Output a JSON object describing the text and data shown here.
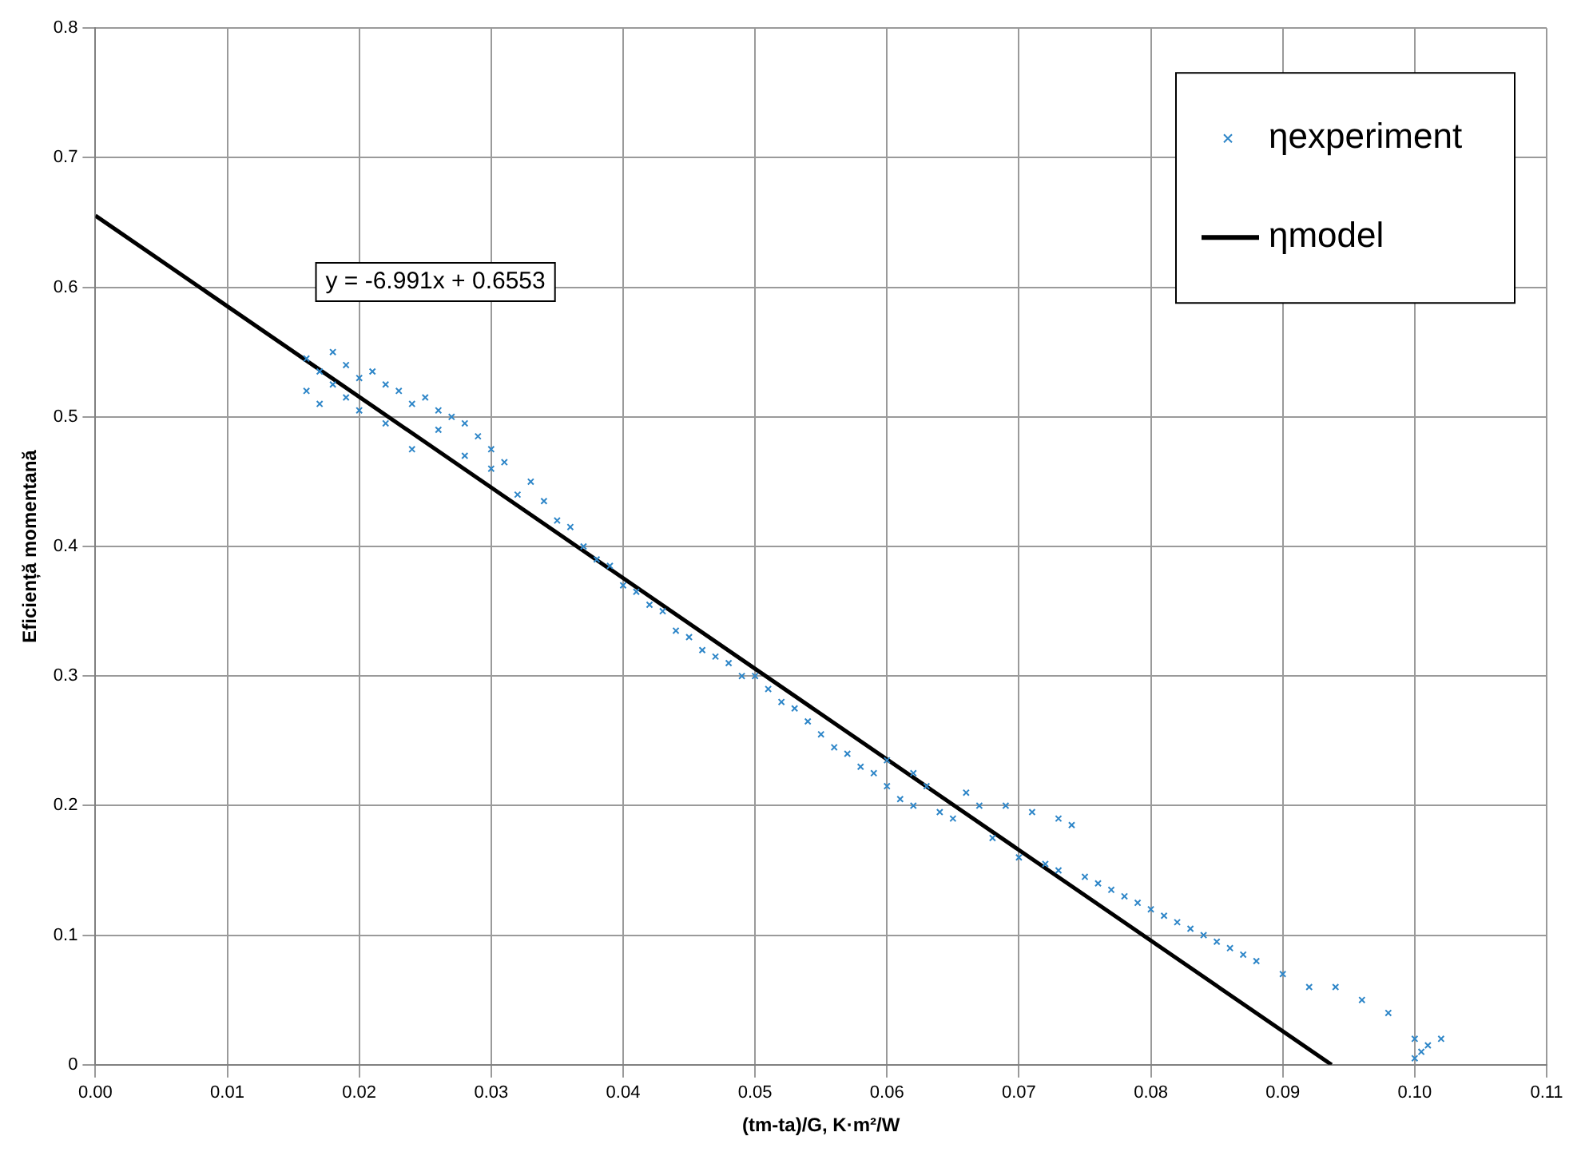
{
  "chart_data": {
    "type": "scatter",
    "xlabel": "(tm-ta)/G, K·m²/W",
    "ylabel": "Eficiență momentană",
    "annotations": [
      "y = -6.991x + 0.6553"
    ],
    "xlim": [
      0,
      0.11
    ],
    "xticks": [
      {
        "value": 0,
        "label": "0.00"
      },
      {
        "value": 0.01,
        "label": "0.01"
      },
      {
        "value": 0.02,
        "label": "0.02"
      },
      {
        "value": 0.03,
        "label": "0.03"
      },
      {
        "value": 0.04,
        "label": "0.04"
      },
      {
        "value": 0.05,
        "label": "0.05"
      },
      {
        "value": 0.06,
        "label": "0.06"
      },
      {
        "value": 0.07,
        "label": "0.07"
      },
      {
        "value": 0.08,
        "label": "0.08"
      },
      {
        "value": 0.09,
        "label": "0.09"
      },
      {
        "value": 0.1,
        "label": "0.10"
      },
      {
        "value": 0.11,
        "label": "0.11"
      }
    ],
    "ylim": [
      0,
      0.8
    ],
    "yticks": [
      0,
      0.1,
      0.2,
      0.3,
      0.4,
      0.5,
      0.6,
      0.7,
      0.8
    ],
    "grid": true,
    "legend": "top right",
    "series": [
      {
        "name": "ηexperiment",
        "marker": "cross",
        "color": "#2e86c8",
        "x": [
          0.016,
          0.016,
          0.017,
          0.017,
          0.018,
          0.018,
          0.019,
          0.019,
          0.02,
          0.02,
          0.021,
          0.022,
          0.022,
          0.023,
          0.024,
          0.024,
          0.025,
          0.026,
          0.026,
          0.027,
          0.028,
          0.028,
          0.029,
          0.03,
          0.03,
          0.031,
          0.032,
          0.033,
          0.034,
          0.035,
          0.036,
          0.037,
          0.038,
          0.039,
          0.04,
          0.041,
          0.042,
          0.043,
          0.044,
          0.045,
          0.046,
          0.047,
          0.048,
          0.049,
          0.05,
          0.051,
          0.052,
          0.053,
          0.054,
          0.055,
          0.056,
          0.057,
          0.058,
          0.059,
          0.06,
          0.06,
          0.061,
          0.062,
          0.062,
          0.063,
          0.064,
          0.065,
          0.066,
          0.067,
          0.068,
          0.069,
          0.07,
          0.071,
          0.072,
          0.073,
          0.074,
          0.073,
          0.075,
          0.076,
          0.077,
          0.078,
          0.079,
          0.08,
          0.081,
          0.082,
          0.083,
          0.084,
          0.085,
          0.086,
          0.087,
          0.088,
          0.09,
          0.092,
          0.094,
          0.096,
          0.098,
          0.1,
          0.1,
          0.1005,
          0.101,
          0.102
        ],
        "values": [
          0.52,
          0.545,
          0.51,
          0.535,
          0.525,
          0.55,
          0.515,
          0.54,
          0.505,
          0.53,
          0.535,
          0.495,
          0.525,
          0.52,
          0.475,
          0.51,
          0.515,
          0.49,
          0.505,
          0.5,
          0.47,
          0.495,
          0.485,
          0.46,
          0.475,
          0.465,
          0.44,
          0.45,
          0.435,
          0.42,
          0.415,
          0.4,
          0.39,
          0.385,
          0.37,
          0.365,
          0.355,
          0.35,
          0.335,
          0.33,
          0.32,
          0.315,
          0.31,
          0.3,
          0.3,
          0.29,
          0.28,
          0.275,
          0.265,
          0.255,
          0.245,
          0.24,
          0.23,
          0.225,
          0.215,
          0.235,
          0.205,
          0.2,
          0.225,
          0.215,
          0.195,
          0.19,
          0.21,
          0.2,
          0.175,
          0.2,
          0.16,
          0.195,
          0.155,
          0.19,
          0.185,
          0.15,
          0.145,
          0.14,
          0.135,
          0.13,
          0.125,
          0.12,
          0.115,
          0.11,
          0.105,
          0.1,
          0.095,
          0.09,
          0.085,
          0.08,
          0.07,
          0.06,
          0.06,
          0.05,
          0.04,
          0.02,
          0.005,
          0.01,
          0.015,
          0.02
        ]
      },
      {
        "name": "ηmodel",
        "type": "line",
        "marker": "none",
        "color": "#000000",
        "x": [
          0,
          0.0937
        ],
        "values": [
          0.6553,
          0
        ]
      }
    ]
  }
}
